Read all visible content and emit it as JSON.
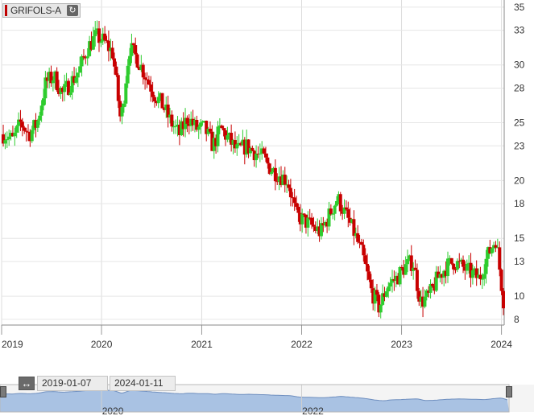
{
  "ticker": {
    "label": "GRIFOLS-A",
    "refresh_icon": "refresh-icon"
  },
  "navigator": {
    "start_date": "2019-01-07",
    "end_date": "2024-01-11",
    "swap_icon": "double-arrow-icon",
    "year_labels": [
      "2020",
      "2022"
    ]
  },
  "colors": {
    "up": "#2ecc2e",
    "down": "#c80000",
    "nav_fill": "#a9c2e3",
    "nav_line": "#6f8fbf"
  },
  "chart_data": {
    "type": "candlestick",
    "x_tick_labels": [
      "2019",
      "2020",
      "2021",
      "2022",
      "2023",
      "2024"
    ],
    "y_tick_labels": [
      "35",
      "33",
      "30",
      "28",
      "25",
      "23",
      "20",
      "18",
      "15",
      "13",
      "10",
      "8"
    ],
    "ylim": [
      7.5,
      35.2
    ],
    "xlim": [
      "2019-01-01",
      "2024-01-11"
    ],
    "grid": true,
    "legend": "none",
    "close_series": [
      [
        "2019-01",
        24.0
      ],
      [
        "2019-02",
        23.5
      ],
      [
        "2019-03",
        25.0
      ],
      [
        "2019-04",
        24.0
      ],
      [
        "2019-05",
        25.0
      ],
      [
        "2019-06",
        28.5
      ],
      [
        "2019-07",
        29.0
      ],
      [
        "2019-08",
        27.5
      ],
      [
        "2019-09",
        28.5
      ],
      [
        "2019-10",
        29.5
      ],
      [
        "2019-11",
        31.5
      ],
      [
        "2019-12",
        32.5
      ],
      [
        "2020-01",
        32.0
      ],
      [
        "2020-02",
        31.0
      ],
      [
        "2020-03",
        25.0
      ],
      [
        "2020-04",
        31.5
      ],
      [
        "2020-05",
        30.5
      ],
      [
        "2020-06",
        29.0
      ],
      [
        "2020-07",
        27.5
      ],
      [
        "2020-08",
        26.5
      ],
      [
        "2020-09",
        25.0
      ],
      [
        "2020-10",
        24.0
      ],
      [
        "2020-11",
        25.5
      ],
      [
        "2020-12",
        24.5
      ],
      [
        "2021-01",
        24.5
      ],
      [
        "2021-02",
        23.0
      ],
      [
        "2021-03",
        24.5
      ],
      [
        "2021-04",
        23.5
      ],
      [
        "2021-05",
        22.5
      ],
      [
        "2021-06",
        23.0
      ],
      [
        "2021-07",
        22.5
      ],
      [
        "2021-08",
        22.0
      ],
      [
        "2021-09",
        21.0
      ],
      [
        "2021-10",
        20.5
      ],
      [
        "2021-11",
        20.0
      ],
      [
        "2021-12",
        17.0
      ],
      [
        "2022-01",
        16.5
      ],
      [
        "2022-02",
        16.0
      ],
      [
        "2022-03",
        15.5
      ],
      [
        "2022-04",
        17.0
      ],
      [
        "2022-05",
        18.5
      ],
      [
        "2022-06",
        17.0
      ],
      [
        "2022-07",
        15.5
      ],
      [
        "2022-08",
        13.5
      ],
      [
        "2022-09",
        10.5
      ],
      [
        "2022-10",
        9.0
      ],
      [
        "2022-11",
        11.0
      ],
      [
        "2022-12",
        11.5
      ],
      [
        "2023-01",
        12.5
      ],
      [
        "2023-02",
        13.0
      ],
      [
        "2023-03",
        9.5
      ],
      [
        "2023-04",
        10.0
      ],
      [
        "2023-05",
        11.5
      ],
      [
        "2023-06",
        12.5
      ],
      [
        "2023-07",
        13.0
      ],
      [
        "2023-08",
        12.5
      ],
      [
        "2023-09",
        12.0
      ],
      [
        "2023-10",
        11.5
      ],
      [
        "2023-11",
        13.5
      ],
      [
        "2023-12",
        15.0
      ],
      [
        "2024-01",
        9.0
      ]
    ]
  }
}
